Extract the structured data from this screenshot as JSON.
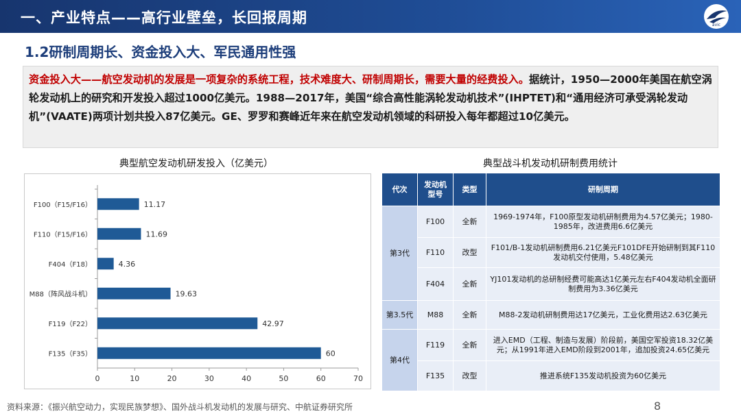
{
  "header": {
    "title": "一、产业特点——高行业壁垒，长回报周期"
  },
  "subtitle": "1.2研制周期长、资金投入大、军民通用性强",
  "intro": {
    "highlight": "资金投入大——航空发动机的发展是一项复杂的系统工程，技术难度大、研制周期长，需要大量的经费投入。",
    "body": "据统计，1950—2000年美国在航空涡轮发动机上的研究和开发投入超过1000亿美元。1988—2017年，美国“综合高性能涡轮发动机技术”(IHPTET)和“通用经济可承受涡轮发动机”(VAATE)两项计划共投入87亿美元。GE、罗罗和赛峰近年来在航空发动机领域的科研投入每年都超过10亿美元。"
  },
  "chart_title": "典型航空发动机研发投入（亿美元）",
  "chart_data": {
    "type": "bar",
    "orientation": "horizontal",
    "categories": [
      "F100（F15/F16）",
      "F110（F15/F16）",
      "F404（F18）",
      "M88（阵风战斗机）",
      "F119（F22）",
      "F135（F35）"
    ],
    "values": [
      11.17,
      11.69,
      4.36,
      19.63,
      42.97,
      60
    ],
    "value_labels": [
      "11.17",
      "11.69",
      "4.36",
      "19.63",
      "42.97",
      "60"
    ],
    "xlim": [
      0,
      70
    ],
    "xticks": [
      0,
      10,
      20,
      30,
      40,
      50,
      60,
      70
    ],
    "bar_color": "#1f5a96",
    "grid": false
  },
  "table_title": "典型战斗机发动机研制费用统计",
  "table": {
    "headers": [
      "代次",
      "发动机型号",
      "类型",
      "研制周期"
    ],
    "generations": [
      "第3代",
      "第3.5代",
      "第4代"
    ],
    "rows": [
      {
        "model": "F100",
        "type": "全新",
        "desc": "1969-1974年，F100原型发动机研制费用为4.57亿美元；1980-1985年，改进费用6.6亿美元"
      },
      {
        "model": "F110",
        "type": "改型",
        "desc": "F101/B-1发动机研制费用6.21亿美元F101DFE开始研制到其F110发动机交付使用，5.48亿美元"
      },
      {
        "model": "F404",
        "type": "全新",
        "desc": "YJ101发动机的总研制经费可能高达1亿美元左右F404发动机全面研制费用为3.36亿美元"
      },
      {
        "model": "M88",
        "type": "全新",
        "desc": "M88-2发动机研制费用达17亿美元，工业化费用达2.63亿美元"
      },
      {
        "model": "F119",
        "type": "全新",
        "desc": "进入EMD（工程、制造与发展）阶段前，美国空军投资18.32亿美元；从1991年进入EMD阶段到2001年，追加投资24.65亿美元"
      },
      {
        "model": "F135",
        "type": "改型",
        "desc": "推进系统F135发动机投资为60亿美元"
      }
    ]
  },
  "footer": {
    "source": "资料来源：《振兴航空动力，实现民族梦想》、国外战斗机发动机的发展与研究、中航证券研究所",
    "page": "8"
  },
  "logo_text": "avic"
}
